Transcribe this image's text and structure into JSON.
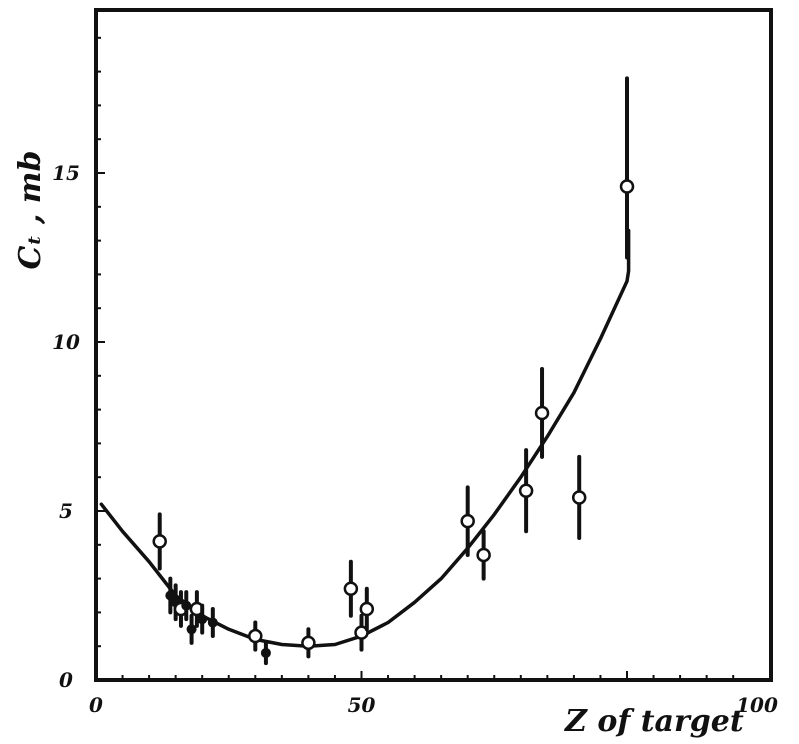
{
  "chart_data": {
    "type": "scatter",
    "xlabel": "Z of target",
    "ylabel": "Cₜ , mb",
    "xlim": [
      0,
      100
    ],
    "ylim": [
      0,
      19
    ],
    "x_ticks": [
      {
        "value": 0,
        "label": "0"
      },
      {
        "value": 50,
        "label": "50"
      },
      {
        "value": 100,
        "label": "100"
      }
    ],
    "y_ticks": [
      {
        "value": 0,
        "label": "0"
      },
      {
        "value": 5,
        "label": "5"
      },
      {
        "value": 10,
        "label": "10"
      },
      {
        "value": 15,
        "label": "15"
      }
    ],
    "points": [
      {
        "x": 12,
        "y": 4.1,
        "err": 0.8,
        "marker": "open"
      },
      {
        "x": 14,
        "y": 2.5,
        "err": 0.5,
        "marker": "filled"
      },
      {
        "x": 15,
        "y": 2.3,
        "err": 0.5,
        "marker": "filled"
      },
      {
        "x": 16,
        "y": 2.1,
        "err": 0.5,
        "marker": "open"
      },
      {
        "x": 17,
        "y": 2.2,
        "err": 0.4,
        "marker": "filled"
      },
      {
        "x": 18,
        "y": 1.5,
        "err": 0.4,
        "marker": "filled"
      },
      {
        "x": 19,
        "y": 2.1,
        "err": 0.5,
        "marker": "open"
      },
      {
        "x": 20,
        "y": 1.8,
        "err": 0.4,
        "marker": "filled"
      },
      {
        "x": 22,
        "y": 1.7,
        "err": 0.4,
        "marker": "filled"
      },
      {
        "x": 30,
        "y": 1.3,
        "err": 0.4,
        "marker": "open"
      },
      {
        "x": 32,
        "y": 0.8,
        "err": 0.3,
        "marker": "filled"
      },
      {
        "x": 40,
        "y": 1.1,
        "err": 0.4,
        "marker": "open"
      },
      {
        "x": 48,
        "y": 2.7,
        "err": 0.8,
        "marker": "open"
      },
      {
        "x": 50,
        "y": 1.4,
        "err": 0.5,
        "marker": "open"
      },
      {
        "x": 51,
        "y": 2.1,
        "err": 0.6,
        "marker": "open"
      },
      {
        "x": 70,
        "y": 4.7,
        "err": 1.0,
        "marker": "open"
      },
      {
        "x": 73,
        "y": 3.7,
        "err": 0.7,
        "marker": "open"
      },
      {
        "x": 81,
        "y": 5.6,
        "err": 1.2,
        "marker": "open"
      },
      {
        "x": 84,
        "y": 7.9,
        "err": 1.3,
        "marker": "open"
      },
      {
        "x": 91,
        "y": 5.4,
        "err": 1.2,
        "marker": "open"
      },
      {
        "x": 100,
        "y": 14.6,
        "err_low": 2.1,
        "err_high": 3.2,
        "marker": "open"
      }
    ],
    "curve": {
      "x": [
        1,
        5,
        10,
        15,
        20,
        25,
        30,
        35,
        40,
        45,
        50,
        55,
        60,
        65,
        70,
        75,
        80,
        85,
        90,
        95,
        100
      ],
      "y": [
        5.2,
        4.4,
        3.5,
        2.5,
        1.9,
        1.5,
        1.2,
        1.05,
        1.0,
        1.05,
        1.3,
        1.7,
        2.3,
        3.0,
        3.9,
        4.9,
        6.0,
        7.2,
        8.5,
        10.1,
        11.8
      ]
    },
    "curve_tail": {
      "x": [
        100,
        100.3,
        100.3
      ],
      "y": [
        11.8,
        12.1,
        13.3
      ]
    },
    "grid": false,
    "colors": {
      "ink": "#111111",
      "background": "#ffffff"
    }
  }
}
